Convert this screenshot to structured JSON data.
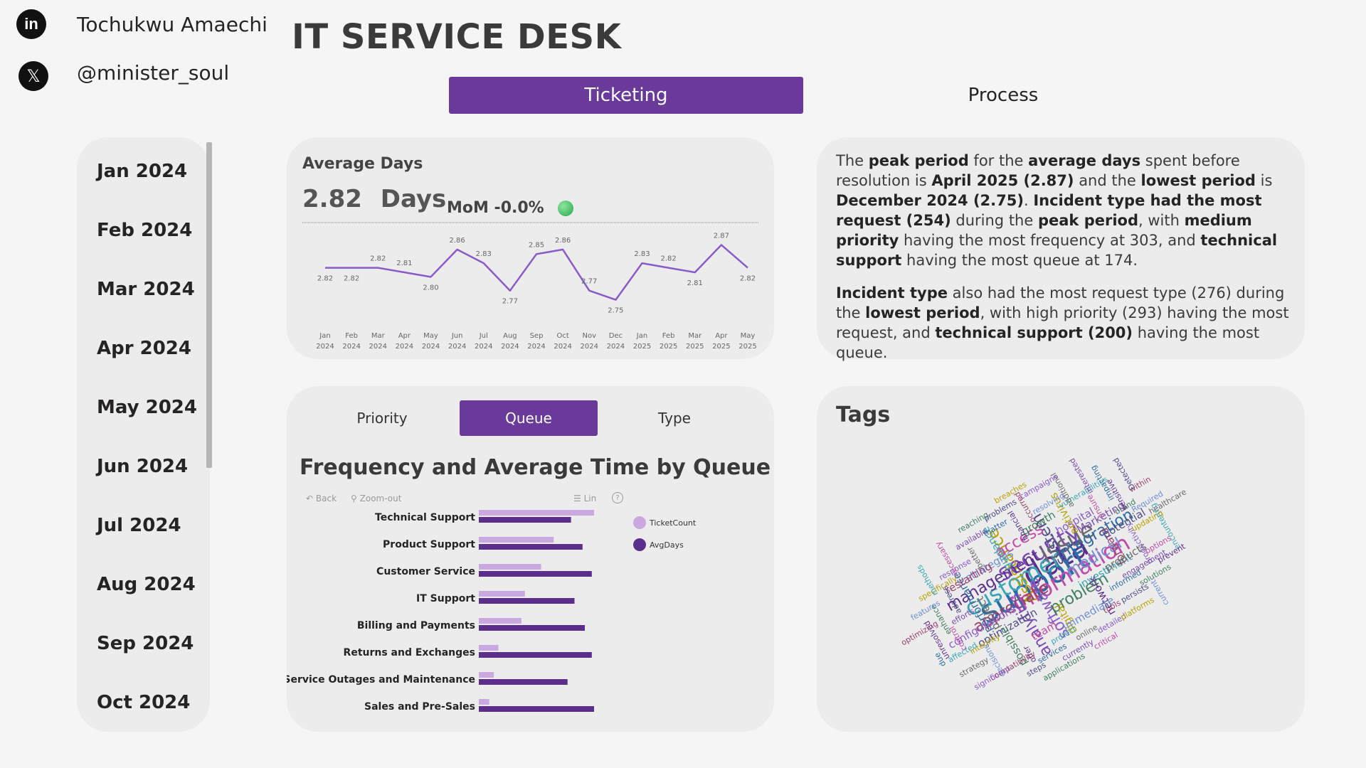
{
  "header": {
    "linkedin_icon": "linkedin-icon",
    "author_name": "Tochukwu Amaechi",
    "x_icon": "x-twitter-icon",
    "handle": "@minister_soul",
    "title": "IT SERVICE DESK"
  },
  "nav": {
    "ticketing": "Ticketing",
    "process": "Process"
  },
  "colors": {
    "accent": "#6a3a9a",
    "ticket_bar": "#c9a9e0",
    "avg_bar": "#5b2e8c",
    "line": "#8a5ac8",
    "green": "#2fb457"
  },
  "date_slicer": [
    "Jan 2024",
    "Feb 2024",
    "Mar 2024",
    "Apr 2024",
    "May 2024",
    "Jun 2024",
    "Jul 2024",
    "Aug 2024",
    "Sep 2024",
    "Oct 2024"
  ],
  "average": {
    "title": "Average Days",
    "value": "2.82",
    "unit": "Days",
    "mom": "MoM -0.0%"
  },
  "insight": {
    "p1": [
      {
        "t": "The ",
        "b": false
      },
      {
        "t": "peak period",
        "b": true
      },
      {
        "t": " for the ",
        "b": false
      },
      {
        "t": "average days",
        "b": true
      },
      {
        "t": " spent before resolution is ",
        "b": false
      },
      {
        "t": "April 2025 (2.87)",
        "b": true
      },
      {
        "t": " and the ",
        "b": false
      },
      {
        "t": "lowest period",
        "b": true
      },
      {
        "t": " is ",
        "b": false
      },
      {
        "t": "December 2024 (2.75)",
        "b": true
      },
      {
        "t": ". ",
        "b": false
      },
      {
        "t": "Incident type had the most request (254)",
        "b": true
      },
      {
        "t": " during the ",
        "b": false
      },
      {
        "t": "peak period",
        "b": true
      },
      {
        "t": ", with ",
        "b": false
      },
      {
        "t": "medium priority",
        "b": true
      },
      {
        "t": " having the most frequency at 303, and ",
        "b": false
      },
      {
        "t": "technical support",
        "b": true
      },
      {
        "t": " having the most queue at 174.",
        "b": false
      }
    ],
    "p2": [
      {
        "t": "Incident type",
        "b": true
      },
      {
        "t": " also had the most request type (276) during the ",
        "b": false
      },
      {
        "t": "lowest period",
        "b": true
      },
      {
        "t": ", with high priority (293) having the most request, and ",
        "b": false
      },
      {
        "t": "technical support (200)",
        "b": true
      },
      {
        "t": " having the most queue.",
        "b": false
      }
    ]
  },
  "segment": {
    "priority": "Priority",
    "queue": "Queue",
    "type": "Type"
  },
  "freq": {
    "title": "Frequency and Average Time by Queue",
    "back": "Back",
    "zoom_out": "Zoom-out",
    "lin": "Lin",
    "help": "?"
  },
  "tags": {
    "title": "Tags"
  },
  "chart_data": [
    {
      "type": "line",
      "title": "",
      "x": [
        "Jan 2024",
        "Feb 2024",
        "Mar 2024",
        "Apr 2024",
        "May 2024",
        "Jun 2024",
        "Jul 2024",
        "Aug 2024",
        "Sep 2024",
        "Oct 2024",
        "Nov 2024",
        "Dec 2024",
        "Jan 2025",
        "Feb 2025",
        "Mar 2025",
        "Apr 2025",
        "May 2025"
      ],
      "x_ticks": [
        [
          "Jan",
          "2024"
        ],
        [
          "Feb",
          "2024"
        ],
        [
          "Mar",
          "2024"
        ],
        [
          "Apr",
          "2024"
        ],
        [
          "May",
          "2024"
        ],
        [
          "Jun",
          "2024"
        ],
        [
          "Jul",
          "2024"
        ],
        [
          "Aug",
          "2024"
        ],
        [
          "Sep",
          "2024"
        ],
        [
          "Oct",
          "2024"
        ],
        [
          "Nov",
          "2024"
        ],
        [
          "Dec",
          "2024"
        ],
        [
          "Jan",
          "2025"
        ],
        [
          "Feb",
          "2025"
        ],
        [
          "Mar",
          "2025"
        ],
        [
          "Apr",
          "2025"
        ],
        [
          "May",
          "2025"
        ]
      ],
      "series": [
        {
          "values": [
            2.82,
            2.82,
            2.82,
            2.81,
            2.8,
            2.86,
            2.83,
            2.77,
            2.85,
            2.86,
            2.77,
            2.75,
            2.83,
            2.82,
            2.81,
            2.87,
            2.82
          ]
        }
      ],
      "labels": [
        "2.82",
        "2.82",
        "2.82",
        "2.81",
        "2.80",
        "2.86",
        "2.83",
        "2.77",
        "2.85",
        "2.86",
        "2.77",
        "2.75",
        "2.83",
        "2.82",
        "2.81",
        "2.87",
        "2.82"
      ],
      "ylim": [
        2.74,
        2.88
      ],
      "grid": false
    },
    {
      "type": "bar",
      "orientation": "horizontal",
      "title": "Frequency and Average Time by Queue",
      "categories": [
        "Technical Support",
        "Product Support",
        "Customer Service",
        "IT Support",
        "Billing and Payments",
        "Returns and Exchanges",
        "Service Outages and Maintenance",
        "Sales and Pre-Sales"
      ],
      "series": [
        {
          "name": "TicketCount",
          "values": [
            100,
            65,
            54,
            40,
            37,
            17,
            13,
            9
          ]
        },
        {
          "name": "AvgDays",
          "values": [
            80,
            90,
            98,
            83,
            92,
            98,
            77,
            100
          ]
        }
      ],
      "legend": "right",
      "xlim": [
        0,
        100
      ]
    }
  ],
  "word_cloud": [
    "data",
    "support",
    "security",
    "information",
    "customer",
    "issue",
    "software",
    "Assistance",
    "medical",
    "appreciate",
    "system",
    "problem",
    "management",
    "integration",
    "analytics",
    "access",
    "investment",
    "project",
    "hospital",
    "digital",
    "strategies",
    "forward",
    "optimization",
    "growth",
    "network",
    "performance",
    "Marketing",
    "team",
    "guidance",
    "products",
    "configurations",
    "antivirus",
    "immediate",
    "restarting",
    "potential",
    "possible",
    "financial",
    "informed",
    "efforts",
    "ensure",
    "protect",
    "better",
    "productivity",
    "integrity",
    "resolving",
    "tools",
    "address",
    "brand",
    "offer",
    "matter",
    "engagement",
    "control",
    "vulnerabilities",
    "online",
    "response",
    "updating",
    "decisions",
    "occurred",
    "persists",
    "enhance",
    "sensitive",
    "services",
    "available",
    "options",
    "affected",
    "additional",
    "detailed",
    "specifically",
    "Required",
    "compatibility",
    "problems",
    "solutions",
    "unresolved",
    "impacting",
    "currently",
    "necessary",
    "encountering",
    "strategy",
    "campaigns",
    "platforms",
    "features",
    "within",
    "steps",
    "reaching",
    "prevent",
    "due",
    "interested",
    "critical",
    "methods",
    "healthcare",
    "significant",
    "breaches",
    "current",
    "optimizing",
    "Detected",
    "applications"
  ]
}
